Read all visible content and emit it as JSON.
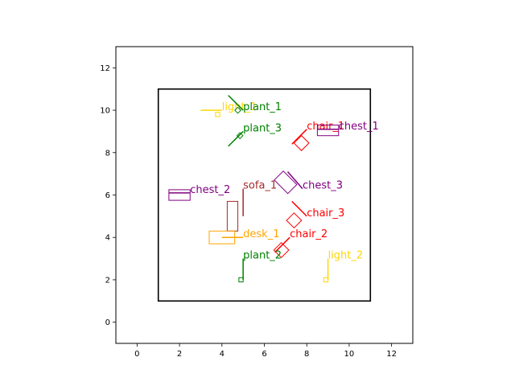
{
  "chart_data": {
    "type": "scatter",
    "title": "",
    "xlabel": "",
    "ylabel": "",
    "xlim": [
      -1,
      13
    ],
    "ylim": [
      -1,
      13
    ],
    "xticks": [
      0,
      2,
      4,
      6,
      8,
      10,
      12
    ],
    "yticks": [
      0,
      2,
      4,
      6,
      8,
      10,
      12
    ],
    "grid": false,
    "room": {
      "x0": 1,
      "y0": 1,
      "x1": 11,
      "y1": 11,
      "color": "#000000"
    },
    "colors": {
      "plant": "#008000",
      "light": "#FFD700",
      "chair": "#FF0000",
      "chest": "#800080",
      "sofa": "#A52A2A",
      "desk": "#FFA500"
    },
    "objects": [
      {
        "name": "light_1",
        "category": "light",
        "x": 3.8,
        "y": 9.8,
        "rect_w": 0.2,
        "rect_h": 0.2,
        "angle": 0,
        "line": [
          [
            3.0,
            10.0
          ],
          [
            4.0,
            10.0
          ]
        ]
      },
      {
        "name": "plant_1",
        "category": "plant",
        "x": 4.75,
        "y": 10.0,
        "rect_w": 0.2,
        "rect_h": 0.2,
        "angle": 45,
        "line": [
          [
            4.3,
            10.7
          ],
          [
            5.0,
            10.0
          ]
        ]
      },
      {
        "name": "plant_3",
        "category": "plant",
        "x": 4.85,
        "y": 8.8,
        "rect_w": 0.2,
        "rect_h": 0.2,
        "angle": 45,
        "line": [
          [
            4.3,
            8.3
          ],
          [
            5.0,
            9.0
          ]
        ]
      },
      {
        "name": "chair_1",
        "category": "chair",
        "x": 7.75,
        "y": 8.45,
        "rect_w": 0.5,
        "rect_h": 0.5,
        "angle": 45,
        "line": [
          [
            7.3,
            8.4
          ],
          [
            8.0,
            9.1
          ]
        ]
      },
      {
        "name": "chest_1",
        "category": "chest",
        "x": 9.0,
        "y": 9.05,
        "rect_w": 1.0,
        "rect_h": 0.5,
        "angle": 0,
        "line": [
          [
            8.5,
            9.1
          ],
          [
            9.5,
            9.1
          ]
        ]
      },
      {
        "name": "chest_3",
        "category": "chest",
        "x": 7.0,
        "y": 6.6,
        "rect_w": 0.9,
        "rect_h": 0.6,
        "angle": -45,
        "line": [
          [
            7.1,
            7.1
          ],
          [
            7.8,
            6.3
          ]
        ]
      },
      {
        "name": "chest_2",
        "category": "chest",
        "x": 2.0,
        "y": 6.0,
        "rect_w": 1.0,
        "rect_h": 0.5,
        "angle": 0,
        "line": [
          [
            1.5,
            6.1
          ],
          [
            2.5,
            6.1
          ]
        ]
      },
      {
        "name": "sofa_1",
        "category": "sofa",
        "x": 4.5,
        "y": 5.0,
        "rect_w": 0.5,
        "rect_h": 1.4,
        "angle": 0,
        "line": [
          [
            5.0,
            5.0
          ],
          [
            5.0,
            6.3
          ]
        ]
      },
      {
        "name": "chair_3",
        "category": "chair",
        "x": 7.4,
        "y": 4.8,
        "rect_w": 0.5,
        "rect_h": 0.5,
        "angle": 45,
        "line": [
          [
            7.3,
            5.7
          ],
          [
            8.0,
            5.0
          ]
        ]
      },
      {
        "name": "desk_1",
        "category": "desk",
        "x": 4.0,
        "y": 4.0,
        "rect_w": 1.2,
        "rect_h": 0.6,
        "angle": 0,
        "line": [
          [
            4.0,
            4.0
          ],
          [
            5.0,
            4.0
          ]
        ]
      },
      {
        "name": "chair_2",
        "category": "chair",
        "x": 6.8,
        "y": 3.4,
        "rect_w": 0.5,
        "rect_h": 0.5,
        "angle": 45,
        "line": [
          [
            6.5,
            3.3
          ],
          [
            7.2,
            4.0
          ]
        ]
      },
      {
        "name": "plant_2",
        "category": "plant",
        "x": 4.9,
        "y": 2.0,
        "rect_w": 0.2,
        "rect_h": 0.2,
        "angle": 0,
        "line": [
          [
            5.0,
            2.0
          ],
          [
            5.0,
            3.0
          ]
        ]
      },
      {
        "name": "light_2",
        "category": "light",
        "x": 8.9,
        "y": 2.0,
        "rect_w": 0.2,
        "rect_h": 0.2,
        "angle": 0,
        "line": [
          [
            9.0,
            2.0
          ],
          [
            9.0,
            3.0
          ]
        ]
      }
    ]
  }
}
